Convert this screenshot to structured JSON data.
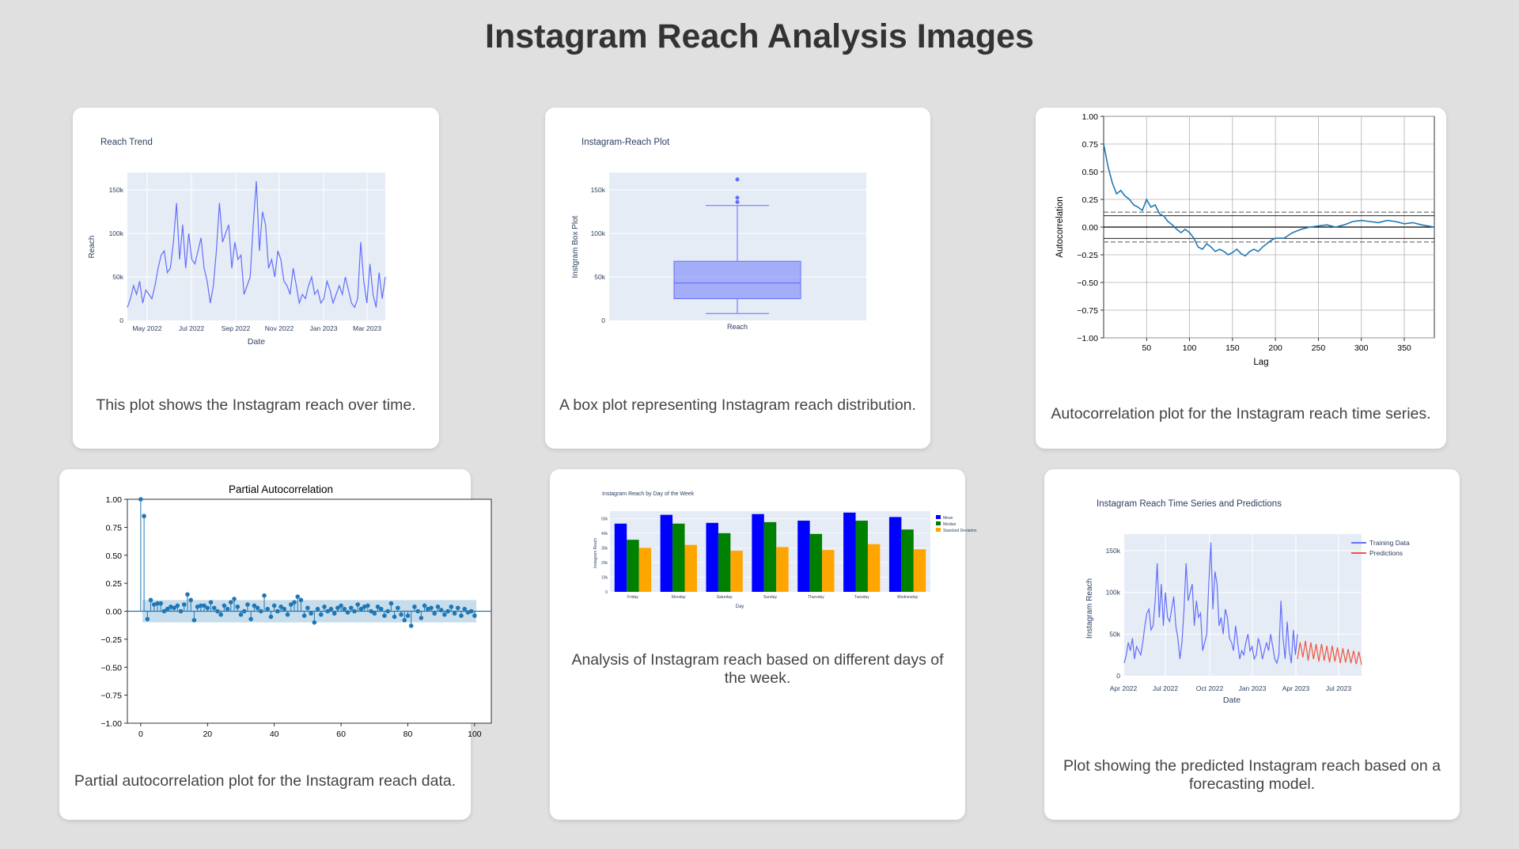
{
  "page": {
    "title": "Instagram Reach Analysis Images"
  },
  "colors": {
    "plotly_bg": "#e5ecf6",
    "plotly_line": "#636efa",
    "mpl_line": "#1f77b4",
    "prediction": "#ef553b",
    "bar_mean": "#0000ff",
    "bar_median": "#008000",
    "bar_std": "#ffa500"
  },
  "cards": [
    {
      "caption": "This plot shows the Instagram reach over time."
    },
    {
      "caption": "A box plot representing Instagram reach distribution."
    },
    {
      "caption": "Autocorrelation plot for the Instagram reach time series."
    },
    {
      "caption": "Partial autocorrelation plot for the Instagram reach data."
    },
    {
      "caption": "Analysis of Instagram reach based on different days of the week."
    },
    {
      "caption": "Plot showing the predicted Instagram reach based on a forecasting model."
    }
  ],
  "chart_data": [
    {
      "type": "line",
      "title": "Reach Trend",
      "xlabel": "Date",
      "ylabel": "Reach",
      "x_ticks": [
        "May 2022",
        "Jul 2022",
        "Sep 2022",
        "Nov 2022",
        "Jan 2023",
        "Mar 2023"
      ],
      "y_ticks": [
        "0",
        "50k",
        "100k",
        "150k"
      ],
      "ylim": [
        0,
        170000
      ],
      "series": [
        {
          "values": [
            15000,
            25000,
            40000,
            30000,
            45000,
            20000,
            35000,
            30000,
            25000,
            40000,
            60000,
            75000,
            80000,
            55000,
            60000,
            90000,
            135000,
            70000,
            110000,
            60000,
            100000,
            70000,
            65000,
            80000,
            95000,
            60000,
            45000,
            20000,
            40000,
            80000,
            135000,
            90000,
            100000,
            110000,
            60000,
            90000,
            70000,
            75000,
            30000,
            40000,
            50000,
            110000,
            160000,
            80000,
            125000,
            110000,
            60000,
            70000,
            50000,
            80000,
            70000,
            45000,
            40000,
            30000,
            60000,
            40000,
            20000,
            30000,
            25000,
            40000,
            50000,
            30000,
            35000,
            20000,
            25000,
            45000,
            35000,
            20000,
            30000,
            40000,
            30000,
            50000,
            35000,
            20000,
            15000,
            25000,
            90000,
            45000,
            20000,
            65000,
            30000,
            15000,
            55000,
            25000,
            50000
          ]
        }
      ]
    },
    {
      "type": "box",
      "title": "Instagram-Reach Plot",
      "xlabel": "Reach",
      "ylabel": "Instgram Box Plot",
      "y_ticks": [
        "0",
        "50k",
        "100k",
        "150k"
      ],
      "ylim": [
        0,
        170000
      ],
      "categories": [
        "Reach"
      ],
      "box": {
        "min": 8000,
        "q1": 25000,
        "median": 43000,
        "q3": 68000,
        "max": 132000,
        "outliers": [
          136000,
          141000,
          162000
        ]
      }
    },
    {
      "type": "line",
      "title": "",
      "xlabel": "Lag",
      "ylabel": "Autocorrelation",
      "x_ticks": [
        "50",
        "100",
        "150",
        "200",
        "250",
        "300",
        "350"
      ],
      "y_ticks": [
        "1.00",
        "0.75",
        "0.50",
        "0.25",
        "0.00",
        "−0.25",
        "−0.50",
        "−0.75",
        "−1.00"
      ],
      "xlim": [
        0,
        385
      ],
      "ylim": [
        -1,
        1
      ],
      "confidence": [
        0.102,
        0.135
      ],
      "series": [
        {
          "x": [
            0,
            5,
            10,
            15,
            20,
            25,
            30,
            35,
            40,
            45,
            50,
            55,
            60,
            65,
            70,
            75,
            80,
            85,
            90,
            95,
            100,
            105,
            110,
            115,
            120,
            125,
            130,
            135,
            140,
            145,
            150,
            155,
            160,
            165,
            170,
            175,
            180,
            185,
            190,
            195,
            200,
            210,
            220,
            230,
            240,
            250,
            260,
            270,
            280,
            290,
            300,
            310,
            320,
            330,
            340,
            350,
            360,
            370,
            385
          ],
          "values": [
            0.75,
            0.55,
            0.4,
            0.3,
            0.33,
            0.28,
            0.25,
            0.2,
            0.18,
            0.15,
            0.25,
            0.18,
            0.2,
            0.12,
            0.1,
            0.05,
            0.02,
            -0.02,
            -0.05,
            -0.02,
            -0.05,
            -0.1,
            -0.18,
            -0.2,
            -0.15,
            -0.18,
            -0.22,
            -0.2,
            -0.22,
            -0.25,
            -0.23,
            -0.2,
            -0.24,
            -0.26,
            -0.22,
            -0.2,
            -0.22,
            -0.18,
            -0.15,
            -0.12,
            -0.1,
            -0.1,
            -0.05,
            -0.02,
            0.0,
            0.01,
            0.02,
            0.0,
            0.02,
            0.05,
            0.06,
            0.05,
            0.04,
            0.06,
            0.05,
            0.03,
            0.04,
            0.02,
            0.0
          ]
        }
      ]
    },
    {
      "type": "scatter",
      "title": "Partial Autocorrelation",
      "xlabel": "",
      "ylabel": "",
      "x_ticks": [
        "0",
        "20",
        "40",
        "60",
        "80",
        "100"
      ],
      "y_ticks": [
        "1.00",
        "0.75",
        "0.50",
        "0.25",
        "0.00",
        "−0.25",
        "−0.50",
        "−0.75",
        "−1.00"
      ],
      "xlim": [
        -4,
        105
      ],
      "ylim": [
        -1,
        1
      ],
      "confidence": 0.1,
      "series": [
        {
          "values": [
            1.0,
            0.85,
            -0.07,
            0.1,
            0.06,
            0.07,
            0.07,
            0.0,
            0.02,
            0.04,
            0.03,
            0.05,
            0.0,
            0.06,
            0.15,
            0.1,
            -0.08,
            0.04,
            0.05,
            0.05,
            0.03,
            0.08,
            0.03,
            0.0,
            -0.03,
            0.05,
            0.02,
            0.08,
            0.11,
            0.04,
            -0.03,
            0.0,
            0.06,
            -0.07,
            0.05,
            0.03,
            0.0,
            0.14,
            0.02,
            -0.05,
            0.05,
            0.0,
            0.04,
            0.02,
            -0.03,
            0.06,
            0.08,
            0.13,
            0.1,
            -0.04,
            0.03,
            -0.02,
            -0.1,
            0.02,
            -0.03,
            0.04,
            0.0,
            0.02,
            -0.02,
            0.03,
            0.05,
            0.02,
            -0.01,
            0.03,
            0.0,
            0.06,
            0.02,
            0.04,
            0.05,
            0.0,
            -0.02,
            0.04,
            0.02,
            -0.04,
            0.0,
            0.07,
            -0.05,
            0.03,
            -0.03,
            -0.08,
            -0.04,
            -0.13,
            0.04,
            0.0,
            -0.06,
            0.05,
            0.02,
            0.03,
            -0.02,
            0.04,
            0.01,
            -0.03,
            0.0,
            0.04,
            -0.02,
            0.03,
            -0.04,
            0.02,
            -0.01,
            0.0,
            -0.04
          ]
        }
      ]
    },
    {
      "type": "bar",
      "title": "Instagram Reach by Day of the Week",
      "xlabel": "Day",
      "ylabel": "Instagram Reach",
      "categories": [
        "Friday",
        "Monday",
        "Saturday",
        "Sunday",
        "Thursday",
        "Tuesday",
        "Wednesday"
      ],
      "y_ticks": [
        "0",
        "10k",
        "20k",
        "30k",
        "40k",
        "50k"
      ],
      "ylim": [
        0,
        55000
      ],
      "series": [
        {
          "name": "Mean",
          "values": [
            46500,
            52500,
            47000,
            53000,
            48500,
            54000,
            51000
          ]
        },
        {
          "name": "Median",
          "values": [
            35500,
            46500,
            40000,
            47500,
            39500,
            48500,
            42500
          ]
        },
        {
          "name": "Standard Deviation",
          "values": [
            30000,
            32000,
            28000,
            30500,
            28500,
            32500,
            29000
          ]
        }
      ]
    },
    {
      "type": "line",
      "title": "Instagram Reach Time Series and Predictions",
      "xlabel": "Date",
      "ylabel": "Instagram Reach",
      "x_ticks": [
        "Apr 2022",
        "Jul 2022",
        "Oct 2022",
        "Jan 2023",
        "Apr 2023",
        "Jul 2023"
      ],
      "y_ticks": [
        "0",
        "50k",
        "100k",
        "150k"
      ],
      "ylim": [
        0,
        170000
      ],
      "series": [
        {
          "name": "Training Data",
          "values": [
            15000,
            25000,
            40000,
            30000,
            45000,
            20000,
            35000,
            30000,
            25000,
            40000,
            60000,
            75000,
            80000,
            55000,
            60000,
            90000,
            135000,
            70000,
            110000,
            60000,
            100000,
            70000,
            65000,
            80000,
            95000,
            60000,
            45000,
            20000,
            40000,
            80000,
            135000,
            90000,
            100000,
            110000,
            60000,
            90000,
            70000,
            75000,
            30000,
            40000,
            50000,
            110000,
            160000,
            80000,
            125000,
            110000,
            60000,
            70000,
            50000,
            80000,
            70000,
            45000,
            40000,
            30000,
            60000,
            40000,
            20000,
            30000,
            25000,
            40000,
            50000,
            30000,
            35000,
            20000,
            25000,
            45000,
            35000,
            20000,
            30000,
            40000,
            30000,
            50000,
            35000,
            20000,
            15000,
            25000,
            90000,
            45000,
            20000,
            65000,
            30000,
            15000,
            55000,
            25000,
            50000
          ]
        },
        {
          "name": "Predictions",
          "values": [
            20000,
            40000,
            22000,
            42000,
            18000,
            40000,
            20000,
            38000,
            17000,
            38000,
            18000,
            36000,
            16000,
            36000,
            17000,
            34000,
            15000,
            33000,
            16000,
            32000,
            15000,
            30000,
            14000,
            29000,
            13000
          ]
        }
      ]
    }
  ]
}
